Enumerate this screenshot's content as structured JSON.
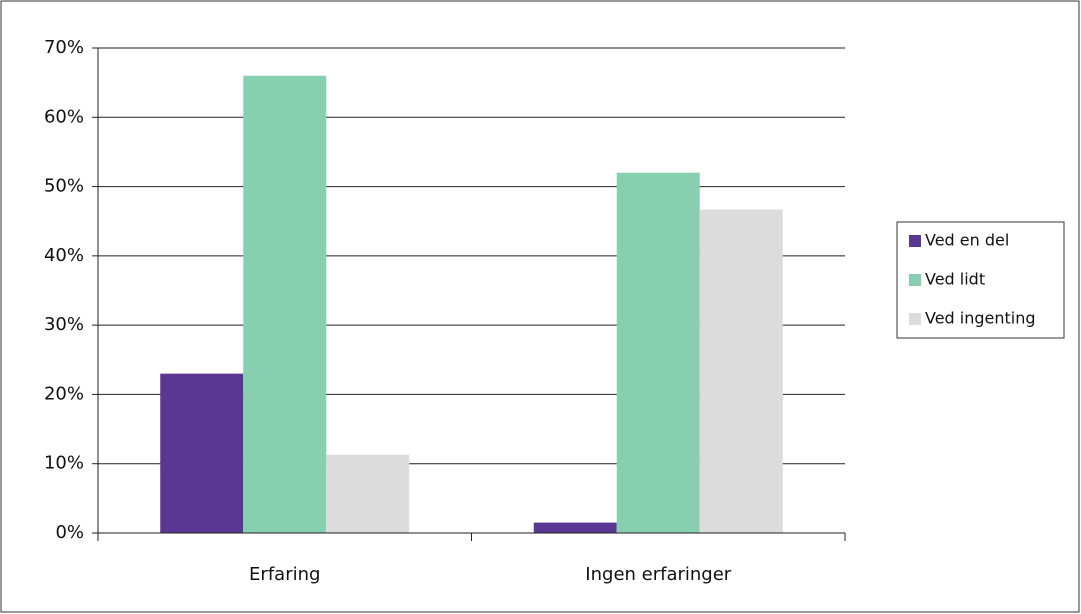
{
  "chart_data": {
    "type": "bar",
    "categories": [
      "Erfaring",
      "Ingen erfaringer"
    ],
    "series": [
      {
        "name": "Ved en del",
        "color": "#5b3794",
        "values": [
          23,
          1.5
        ]
      },
      {
        "name": "Ved lidt",
        "color": "#88cfb2",
        "values": [
          66,
          52
        ]
      },
      {
        "name": "Ved ingenting",
        "color": "#dcdcdc",
        "values": [
          11.3,
          46.7
        ]
      }
    ],
    "ylim": [
      0,
      70
    ],
    "yticks": [
      {
        "value": 0,
        "label": "0%"
      },
      {
        "value": 10,
        "label": "10%"
      },
      {
        "value": 20,
        "label": "20%"
      },
      {
        "value": 30,
        "label": "30%"
      },
      {
        "value": 40,
        "label": "40%"
      },
      {
        "value": 50,
        "label": "50%"
      },
      {
        "value": 60,
        "label": "60%"
      },
      {
        "value": 70,
        "label": "70%"
      }
    ],
    "grid": true,
    "legend": "right"
  }
}
